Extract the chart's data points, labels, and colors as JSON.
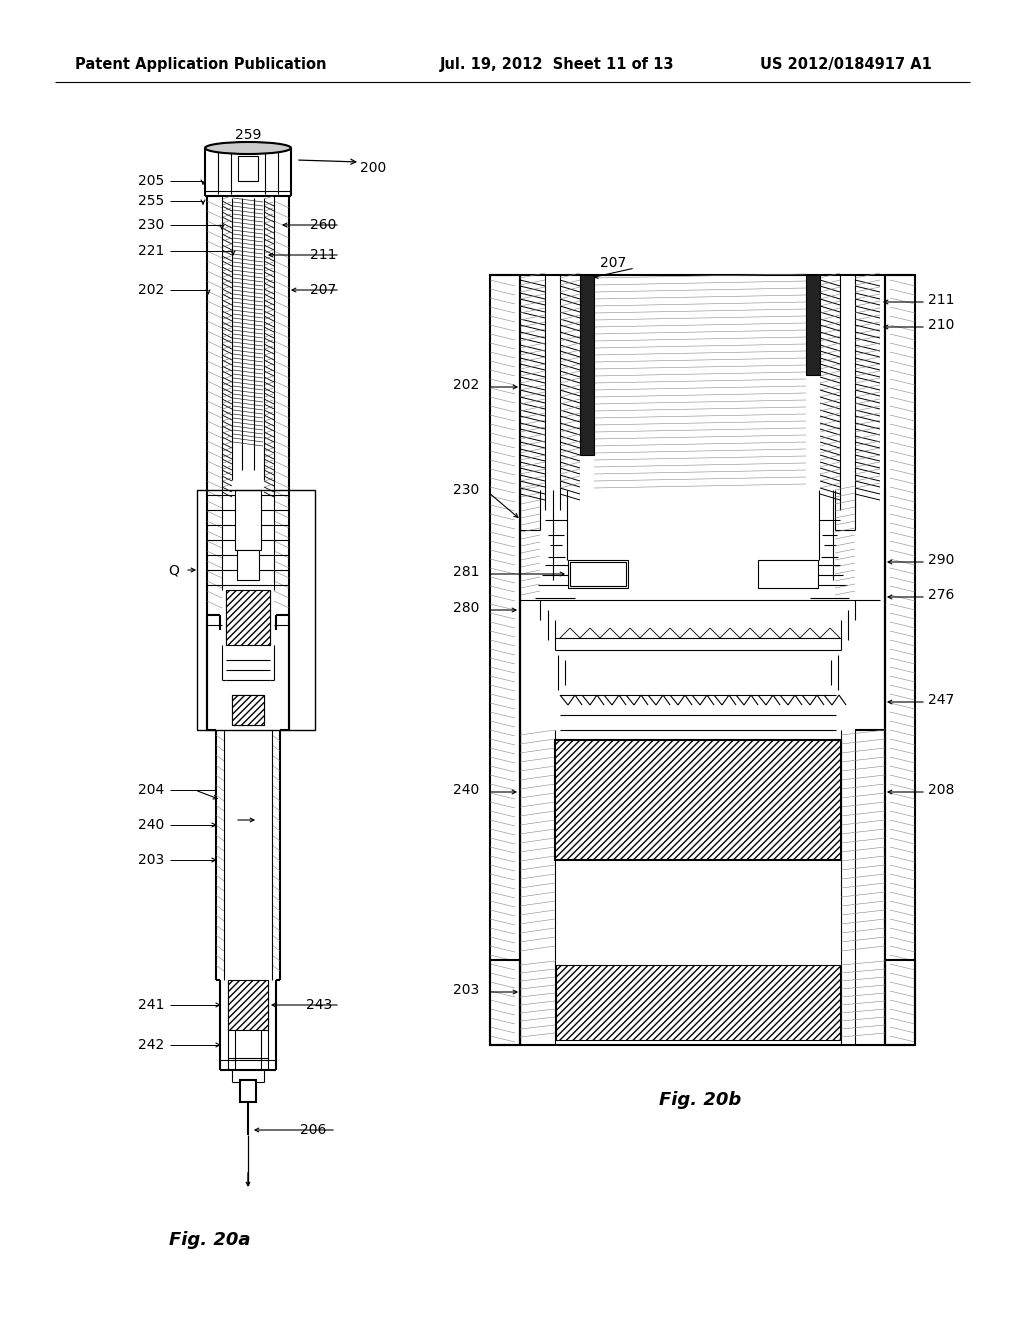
{
  "title_left": "Patent Application Publication",
  "title_mid": "Jul. 19, 2012  Sheet 11 of 13",
  "title_right": "US 2012/0184917 A1",
  "fig_a_label": "Fig. 20a",
  "fig_b_label": "Fig. 20b",
  "bg_color": "#ffffff",
  "line_color": "#000000",
  "header_fontsize": 10.5,
  "label_fontsize": 10,
  "fig_label_fontsize": 13
}
